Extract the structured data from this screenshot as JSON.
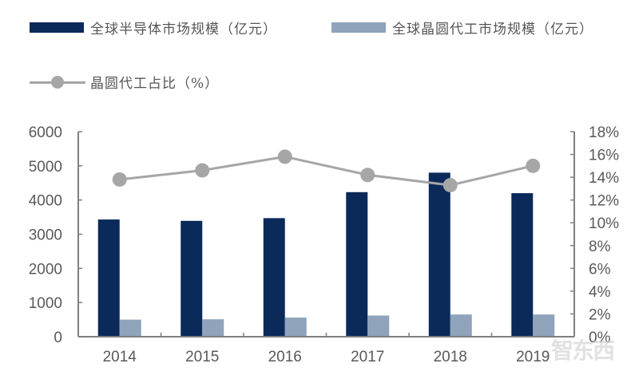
{
  "legend": {
    "series1_label": "全球半导体市场规模（亿元）",
    "series2_label": "全球晶圆代工市场规模（亿元）",
    "series3_label": "晶圆代工占比（%）"
  },
  "colors": {
    "series1": "#0b2a5a",
    "series2": "#8fa3bb",
    "series3": "#a6a6a6",
    "axis": "#7f7f7f",
    "tick_text": "#595959"
  },
  "watermark": "智东西",
  "chart_data": {
    "type": "bar",
    "title": "",
    "xlabel": "",
    "ylabel": "",
    "categories": [
      "2014",
      "2015",
      "2016",
      "2017",
      "2018",
      "2019"
    ],
    "series": [
      {
        "name": "全球半导体市场规模（亿元）",
        "type": "bar",
        "axis": "left",
        "values": [
          3430,
          3390,
          3470,
          4230,
          4800,
          4200
        ]
      },
      {
        "name": "全球晶圆代工市场规模（亿元）",
        "type": "bar",
        "axis": "left",
        "values": [
          500,
          510,
          560,
          620,
          650,
          650
        ]
      },
      {
        "name": "晶圆代工占比（%）",
        "type": "line",
        "axis": "right",
        "values": [
          13.8,
          14.6,
          15.8,
          14.2,
          13.3,
          15.0
        ]
      }
    ],
    "ylim": [
      0,
      6000
    ],
    "y_ticks": [
      "0",
      "1000",
      "2000",
      "3000",
      "4000",
      "5000",
      "6000"
    ],
    "y2lim": [
      0,
      18
    ],
    "y2_ticks": [
      "0%",
      "2%",
      "4%",
      "6%",
      "8%",
      "10%",
      "12%",
      "14%",
      "16%",
      "18%"
    ],
    "grid": false,
    "legend_position": "top"
  }
}
